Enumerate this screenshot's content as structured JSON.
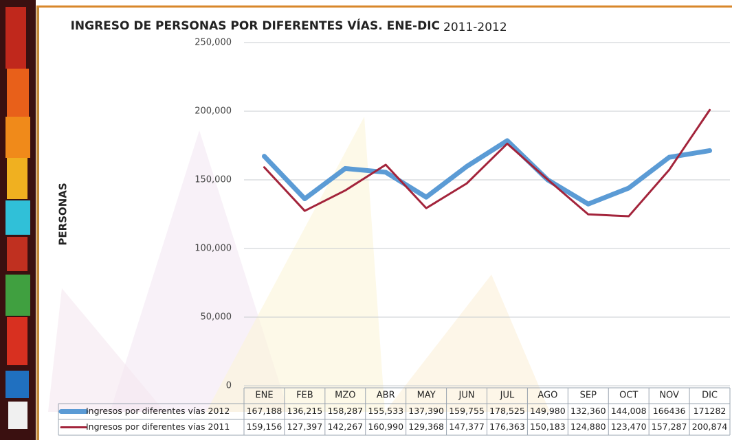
{
  "chart_data": {
    "type": "line",
    "title": "INGRESO DE PERSONAS POR DIFERENTES VÍAS. ENE-DIC",
    "subtitle": "2011-2012",
    "y_label": "PERSONAS",
    "categories": [
      "ENE",
      "FEB",
      "MZO",
      "ABR",
      "MAY",
      "JUN",
      "JUL",
      "AGO",
      "SEP",
      "OCT",
      "NOV",
      "DIC"
    ],
    "series": [
      {
        "name": "Ingresos por diferentes vías 2012",
        "color": "#5b9bd5",
        "values": [
          167188,
          136215,
          158287,
          155533,
          137390,
          159755,
          178525,
          149980,
          132360,
          144008,
          166436,
          171282
        ],
        "value_labels": [
          "167,188",
          "136,215",
          "158,287",
          "155,533",
          "137,390",
          "159,755",
          "178,525",
          "149,980",
          "132,360",
          "144,008",
          "166436",
          "171282"
        ]
      },
      {
        "name": "Ingresos por diferentes vías 2011",
        "color": "#a3243b",
        "values": [
          159156,
          127397,
          142267,
          160990,
          129368,
          147377,
          176363,
          150183,
          124880,
          123470,
          157287,
          200874
        ],
        "value_labels": [
          "159,156",
          "127,397",
          "142,267",
          "160,990",
          "129,368",
          "147,377",
          "176,363",
          "150,183",
          "124,880",
          "123,470",
          "157,287",
          "200,874"
        ]
      }
    ],
    "ylim": [
      0,
      250000
    ],
    "yticks": [
      0,
      {
        "value": 50000,
        "label": "50,000"
      },
      {
        "value": 100000,
        "label": "100,000"
      },
      {
        "value": 150000,
        "label": "150,000"
      },
      {
        "value": 200000,
        "label": "200,000"
      },
      {
        "value": 250000,
        "label": "250,000"
      }
    ],
    "grid": true
  }
}
